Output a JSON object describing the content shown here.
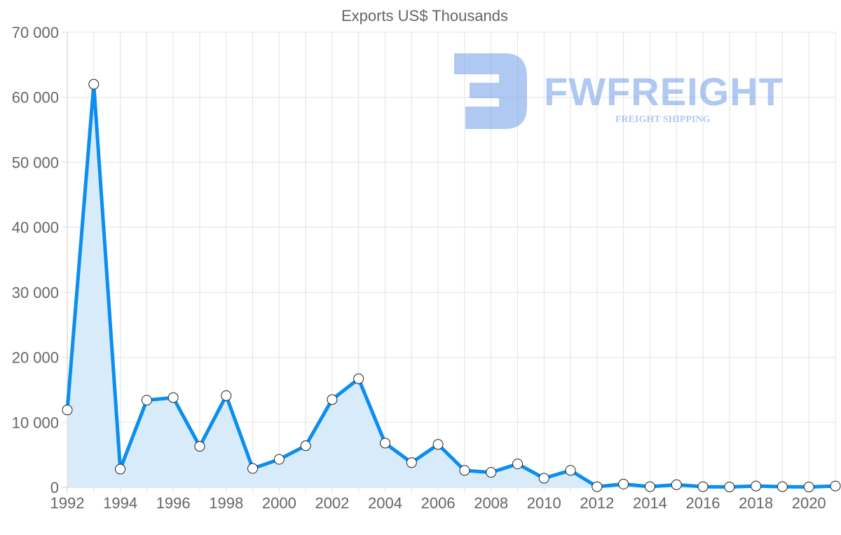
{
  "chart_data": {
    "type": "line",
    "title": "Exports US$ Thousands",
    "xlabel": "",
    "ylabel": "",
    "x": [
      1992,
      1993,
      1994,
      1995,
      1996,
      1997,
      1998,
      1999,
      2000,
      2001,
      2002,
      2003,
      2004,
      2005,
      2006,
      2007,
      2008,
      2009,
      2010,
      2011,
      2012,
      2013,
      2014,
      2015,
      2016,
      2017,
      2018,
      2019,
      2020,
      2021
    ],
    "series": [
      {
        "name": "Exports US$ Thousands",
        "values": [
          11900,
          62000,
          2800,
          13400,
          13800,
          6300,
          14100,
          2900,
          4300,
          6400,
          13500,
          16700,
          6800,
          3800,
          6600,
          2600,
          2300,
          3600,
          1400,
          2600,
          100,
          500,
          100,
          400,
          100,
          50,
          200,
          100,
          50,
          200
        ]
      }
    ],
    "ylim": [
      0,
      70000
    ],
    "yticks": [
      "0",
      "10 000",
      "20 000",
      "30 000",
      "40 000",
      "50 000",
      "60 000",
      "70 000"
    ],
    "xtick_labels": [
      "1992",
      "1994",
      "1996",
      "1998",
      "2000",
      "2002",
      "2004",
      "2006",
      "2008",
      "2010",
      "2012",
      "2014",
      "2016",
      "2018",
      "2020"
    ],
    "grid": true,
    "fill": true,
    "colors": {
      "line": "#0a8ef0",
      "fill": "#d8ebfb",
      "grid": "#e3e3e3",
      "point_fill": "#ffffff",
      "point_stroke": "#222222"
    }
  },
  "watermark": {
    "brand": "FWFREIGHT",
    "tagline": "FREIGHT SHIPPING"
  }
}
